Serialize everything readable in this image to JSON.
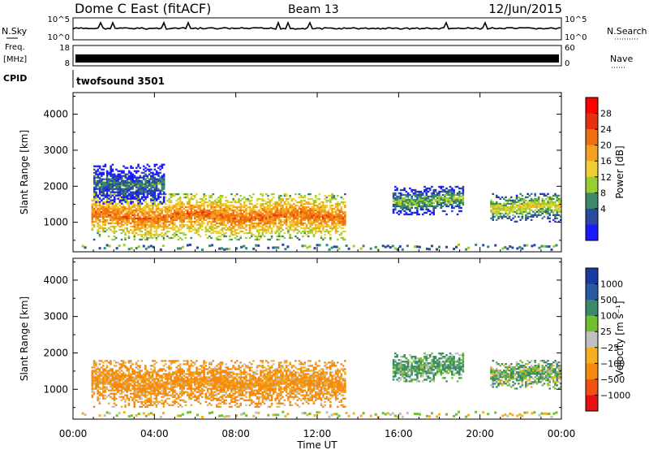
{
  "header": {
    "station": "Dome C East (fitACF)",
    "beam": "Beam 13",
    "date": "12/Jun/2015"
  },
  "status_panels": {
    "nsky": {
      "label": "N.Sky",
      "ticks": [
        "10^5",
        "10^0"
      ]
    },
    "nsearch": {
      "label": "N.Search",
      "ticks": [
        "10^5",
        "10^0"
      ]
    },
    "freq": {
      "label_line1": "Freq.",
      "label_line2": "[MHz]",
      "ticks": [
        "18",
        "8"
      ]
    },
    "nave": {
      "label": "Nave",
      "ticks": [
        "60",
        "0"
      ]
    },
    "cpid": {
      "label": "CPID",
      "value": "twofsound 3501"
    }
  },
  "colors": {
    "power_scale": [
      "#1a1aff",
      "#2a4aa0",
      "#3a8a6a",
      "#9acd32",
      "#f0d030",
      "#f5a020",
      "#f07010",
      "#e83010",
      "#ff0000"
    ],
    "velocity_scale": [
      "#e81010",
      "#f05010",
      "#f58a10",
      "#f5b020",
      "#c0c0c0",
      "#70c030",
      "#3a8a6a",
      "#2a5aa0",
      "#1a3aa0"
    ]
  },
  "chart_data": [
    {
      "type": "heatmap",
      "name": "power-panel",
      "ylabel": "Slant Range [km]",
      "ylim": [
        180,
        4600
      ],
      "y_ticks": [
        "4000",
        "3000",
        "2000",
        "1000"
      ],
      "y_tick_values": [
        4000,
        3000,
        2000,
        1000
      ],
      "colorbar": {
        "label": "Power [dB]",
        "tick_labels": [
          "28",
          "24",
          "20",
          "16",
          "12",
          "8",
          "4"
        ],
        "range": [
          0,
          32
        ]
      },
      "echo_regions": [
        {
          "t_start": 0.9,
          "t_end": 13.4,
          "r_low": 500,
          "r_high": 1800,
          "level": 26
        },
        {
          "t_start": 1.0,
          "t_end": 4.5,
          "r_low": 1500,
          "r_high": 2600,
          "level": 10
        },
        {
          "t_start": 15.7,
          "t_end": 19.2,
          "r_low": 1200,
          "r_high": 2000,
          "level": 14
        },
        {
          "t_start": 20.5,
          "t_end": 24.0,
          "r_low": 1000,
          "r_high": 1800,
          "level": 18
        }
      ]
    },
    {
      "type": "heatmap",
      "name": "velocity-panel",
      "ylabel": "Slant Range [km]",
      "xlabel": "Time UT",
      "ylim": [
        180,
        4600
      ],
      "y_ticks": [
        "4000",
        "3000",
        "2000",
        "1000"
      ],
      "y_tick_values": [
        4000,
        3000,
        2000,
        1000
      ],
      "x_ticks": [
        "00:00",
        "04:00",
        "08:00",
        "12:00",
        "16:00",
        "20:00",
        "00:00"
      ],
      "x_tick_hours": [
        0,
        4,
        8,
        12,
        16,
        20,
        24
      ],
      "colorbar": {
        "label": "Velocity [m s⁻¹]",
        "tick_labels": [
          "1000",
          "500",
          "100",
          "25",
          "−25",
          "−100",
          "−500",
          "−1000"
        ]
      },
      "echo_regions": [
        {
          "t_start": 0.9,
          "t_end": 13.4,
          "r_low": 500,
          "r_high": 1800,
          "velocity": -150
        },
        {
          "t_start": 15.7,
          "t_end": 19.2,
          "r_low": 1200,
          "r_high": 2000,
          "velocity": 120
        },
        {
          "t_start": 20.5,
          "t_end": 24.0,
          "r_low": 1000,
          "r_high": 1800,
          "velocity": 80
        }
      ]
    }
  ]
}
